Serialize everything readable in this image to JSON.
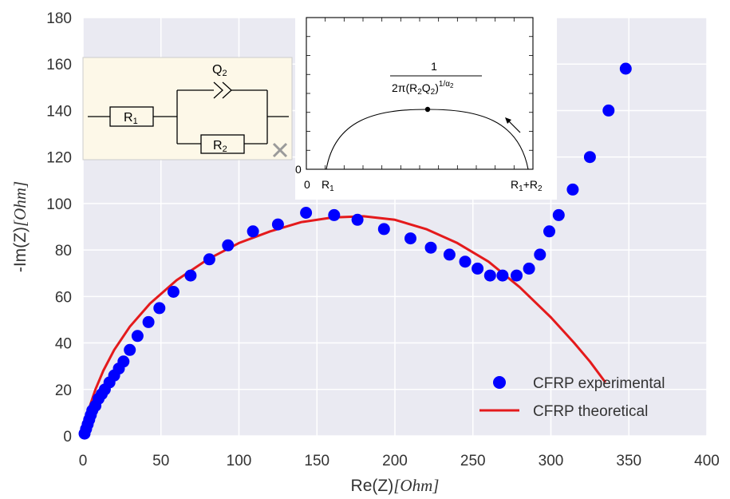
{
  "chart_data": {
    "type": "scatter",
    "title": "",
    "xlabel": {
      "prefix": "Re(Z)",
      "unit": "Ohm"
    },
    "ylabel": {
      "prefix": "-Im(Z)",
      "unit": "Ohm"
    },
    "xlim": [
      0,
      400
    ],
    "ylim": [
      0,
      180
    ],
    "xticks": [
      0,
      50,
      100,
      150,
      200,
      250,
      300,
      350,
      400
    ],
    "yticks": [
      0,
      20,
      40,
      60,
      80,
      100,
      120,
      140,
      160,
      180
    ],
    "grid": true,
    "legend_position": "bottom-right",
    "series": [
      {
        "name": "CFRP experimental",
        "kind": "scatter",
        "color": "#0000ff",
        "x": [
          1,
          2,
          3,
          4,
          5,
          6,
          8,
          10,
          12,
          14,
          17,
          20,
          23,
          26,
          30,
          35,
          42,
          49,
          58,
          69,
          81,
          93,
          109,
          125,
          143,
          161,
          176,
          193,
          210,
          223,
          235,
          245,
          253,
          261,
          269,
          278,
          286,
          293,
          299,
          305,
          314,
          325,
          337,
          348
        ],
        "y": [
          1,
          3,
          5,
          7,
          9,
          11,
          13,
          16,
          18,
          20,
          23,
          26,
          29,
          32,
          37,
          43,
          49,
          55,
          62,
          69,
          76,
          82,
          88,
          91,
          96,
          95,
          93,
          89,
          85,
          81,
          78,
          75,
          72,
          69,
          69,
          69,
          72,
          78,
          88,
          95,
          106,
          120,
          140,
          158
        ]
      },
      {
        "name": "CFRP theoretical",
        "kind": "line",
        "color": "#e41a1c",
        "x": [
          0,
          1.5,
          4,
          8,
          13,
          20,
          30,
          43,
          60,
          80,
          100,
          120,
          140,
          160,
          180,
          200,
          220,
          240,
          260,
          280,
          300,
          315,
          325,
          335
        ],
        "y": [
          0,
          5,
          12,
          20,
          28,
          37,
          47,
          57,
          67,
          76,
          83,
          88,
          92,
          94,
          94.5,
          93,
          89,
          83,
          75,
          64,
          51,
          40,
          32,
          23
        ]
      }
    ],
    "inset_nyquist": {
      "origin_label": "0",
      "left_intercept_label": "R",
      "left_intercept_sub": "1",
      "right_intercept_label": "R",
      "right_intercept_sub1": "1",
      "right_intercept_plus": "+R",
      "right_intercept_sub2": "2",
      "apex_numerator": "1",
      "apex_denominator_prefix": "2π(R",
      "apex_denominator_sub1": "2",
      "apex_denominator_mid": "Q",
      "apex_denominator_sub2": "2",
      "apex_denominator_close": ")",
      "apex_denominator_exp": "1/α",
      "apex_denominator_exp_sub": "2"
    },
    "inset_circuit": {
      "r1_label": "R",
      "r1_sub": "1",
      "r2_label": "R",
      "r2_sub": "2",
      "q_label": "Q",
      "q_sub": "2",
      "close_icon": "close-icon",
      "background": "#fdf8e8"
    }
  }
}
